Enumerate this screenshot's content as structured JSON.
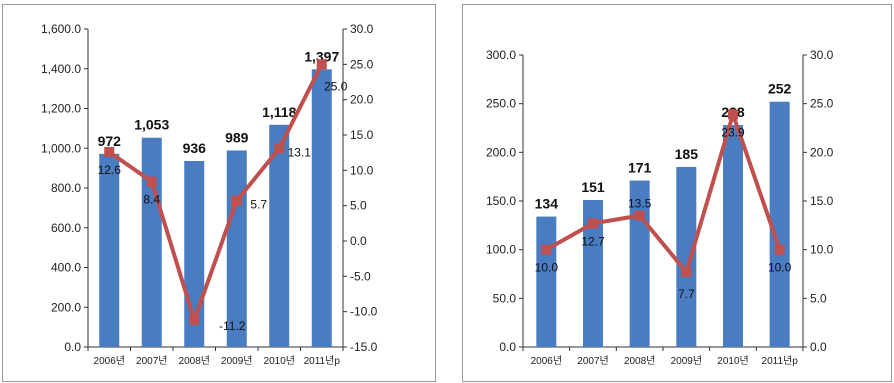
{
  "chart_data": [
    {
      "type": "bar",
      "categories": [
        "2006년",
        "2007년",
        "2008년",
        "2009년",
        "2010년",
        "2011년p"
      ],
      "series": [
        {
          "type": "bar",
          "axis": "left",
          "values": [
            972,
            1053,
            936,
            989,
            1118,
            1397
          ],
          "labels": [
            "972",
            "1,053",
            "936",
            "989",
            "1,118",
            "1,397"
          ]
        },
        {
          "type": "line",
          "axis": "right",
          "values": [
            12.6,
            8.4,
            -11.2,
            5.7,
            13.1,
            25.0
          ],
          "labels": [
            "12.6",
            "8.4",
            "-11.2",
            "5.7",
            "13.1",
            "25.0"
          ]
        }
      ],
      "ylim": [
        0,
        1600
      ],
      "yticks": [
        "0.0",
        "200.0",
        "400.0",
        "600.0",
        "800.0",
        "1,000.0",
        "1,200.0",
        "1,400.0",
        "1,600.0"
      ],
      "y2lim": [
        -15,
        30
      ],
      "y2ticks": [
        "-15.0",
        "-10.0",
        "-5.0",
        "0.0",
        "5.0",
        "10.0",
        "15.0",
        "20.0",
        "25.0",
        "30.0"
      ],
      "bar_color": "#4a7cc2",
      "line_color": "#c0504d",
      "grid": false
    },
    {
      "type": "bar",
      "categories": [
        "2006년",
        "2007년",
        "2008년",
        "2009년",
        "2010년",
        "2011년p"
      ],
      "series": [
        {
          "type": "bar",
          "axis": "left",
          "values": [
            134,
            151,
            171,
            185,
            228,
            252
          ],
          "labels": [
            "134",
            "151",
            "171",
            "185",
            "228",
            "252"
          ]
        },
        {
          "type": "line",
          "axis": "right",
          "values": [
            10.0,
            12.7,
            13.5,
            7.7,
            23.9,
            10.0
          ],
          "labels": [
            "10.0",
            "12.7",
            "13.5",
            "7.7",
            "23.9",
            "10.0"
          ]
        }
      ],
      "ylim": [
        0,
        300
      ],
      "yticks": [
        "0.0",
        "50.0",
        "100.0",
        "150.0",
        "200.0",
        "250.0",
        "300.0"
      ],
      "y2lim": [
        0,
        30
      ],
      "y2ticks": [
        "0.0",
        "5.0",
        "10.0",
        "15.0",
        "20.0",
        "25.0",
        "30.0"
      ],
      "bar_color": "#4a7cc2",
      "line_color": "#c0504d",
      "grid": false
    }
  ]
}
